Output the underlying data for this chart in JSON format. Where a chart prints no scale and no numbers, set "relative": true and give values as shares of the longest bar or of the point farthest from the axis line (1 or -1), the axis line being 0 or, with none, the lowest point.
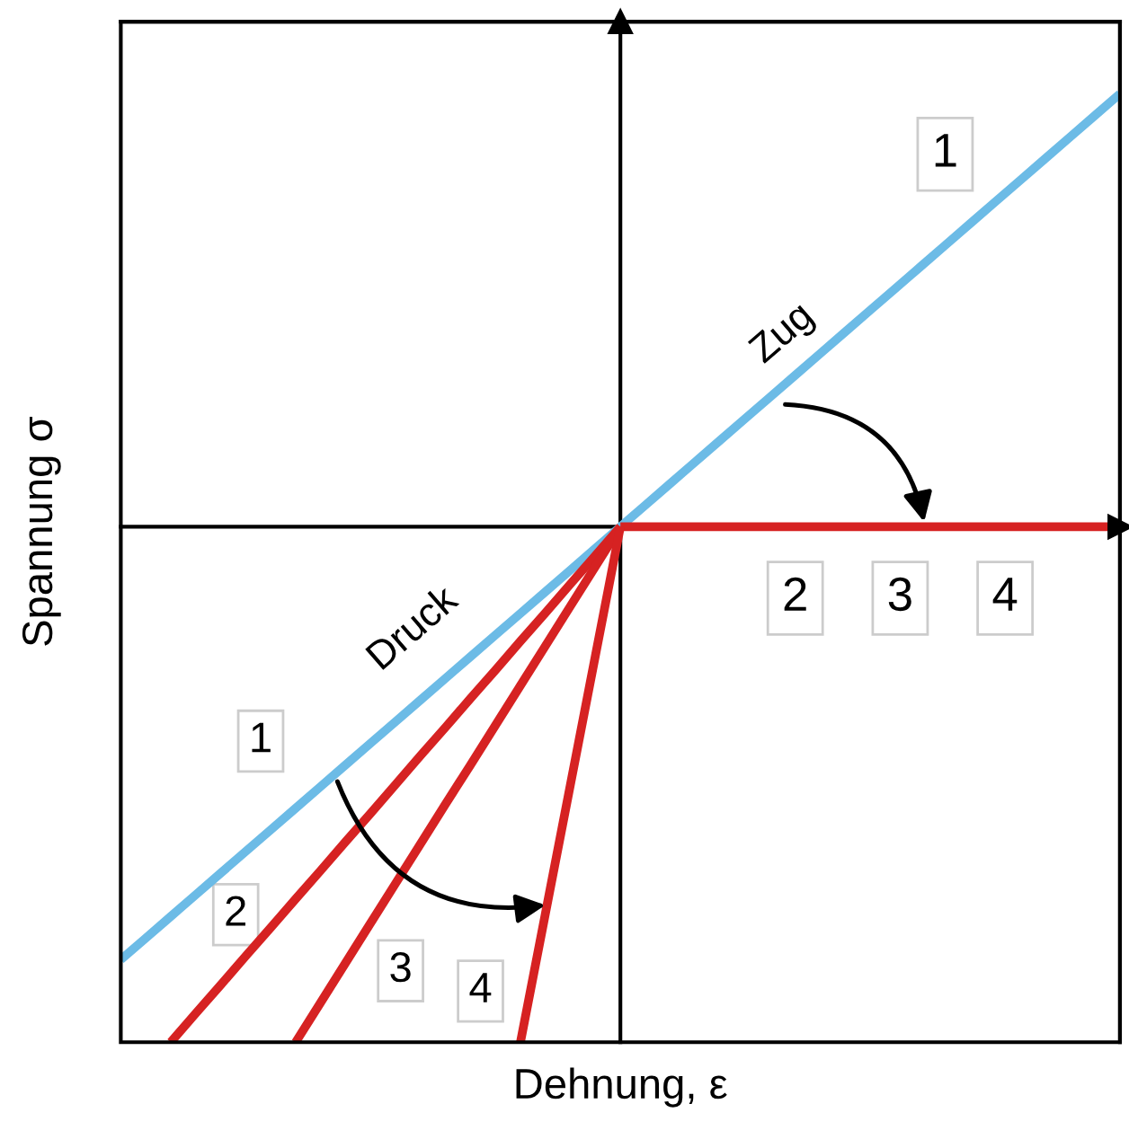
{
  "chart_data": {
    "type": "line",
    "relative": true,
    "xlabel": "Dehnung, ε",
    "ylabel": "Spannung σ",
    "line_style": "solid",
    "categories": [
      null,
      null,
      null,
      null,
      null,
      null,
      null,
      null,
      null,
      null,
      null,
      null,
      null,
      null,
      null,
      null,
      null,
      null,
      null,
      null,
      null,
      null,
      null,
      null,
      null,
      null,
      null,
      null,
      null,
      null,
      null,
      null,
      null,
      null,
      null,
      null,
      null,
      null,
      null,
      null,
      null
    ],
    "series": [
      {
        "name": "1",
        "color": "#6cbbe6",
        "values": [
          -0.84,
          -0.798,
          -0.756,
          -0.714,
          -0.672,
          -0.63,
          -0.588,
          -0.546,
          -0.504,
          -0.462,
          -0.42,
          -0.378,
          -0.336,
          -0.294,
          -0.252,
          -0.21,
          -0.168,
          -0.126,
          -0.084,
          -0.042,
          0,
          0.042,
          0.084,
          0.126,
          0.168,
          0.21,
          0.252,
          0.294,
          0.336,
          0.378,
          0.42,
          0.462,
          0.504,
          0.546,
          0.588,
          0.63,
          0.672,
          0.714,
          0.756,
          0.798,
          0.84
        ]
      },
      {
        "color": "#d62222",
        "values": [
          null,
          null,
          null,
          null,
          null,
          null,
          null,
          null,
          null,
          null,
          null,
          null,
          null,
          null,
          null,
          null,
          null,
          null,
          null,
          null,
          0,
          0,
          0,
          0,
          0,
          0,
          0,
          0,
          0,
          0,
          0,
          0,
          0,
          0,
          0,
          0,
          0,
          0,
          0,
          0,
          0
        ]
      },
      {
        "name": "2",
        "color": "#d62222",
        "values": [
          null,
          null,
          -1,
          -0.944,
          -0.889,
          -0.833,
          -0.778,
          -0.722,
          -0.667,
          -0.611,
          -0.556,
          -0.5,
          -0.444,
          -0.389,
          -0.333,
          -0.278,
          -0.222,
          -0.167,
          -0.111,
          -0.056,
          0,
          null,
          null,
          null,
          null,
          null,
          null,
          null,
          null,
          null,
          null,
          null,
          null,
          null,
          null,
          null,
          null,
          null,
          null,
          null,
          null
        ]
      },
      {
        "name": "3",
        "color": "#d62222",
        "values": [
          null,
          null,
          null,
          null,
          null,
          null,
          null,
          -1,
          -0.923,
          -0.846,
          -0.769,
          -0.692,
          -0.615,
          -0.538,
          -0.462,
          -0.385,
          -0.308,
          -0.231,
          -0.154,
          -0.077,
          0,
          null,
          null,
          null,
          null,
          null,
          null,
          null,
          null,
          null,
          null,
          null,
          null,
          null,
          null,
          null,
          null,
          null,
          null,
          null,
          null
        ]
      },
      {
        "name": "4",
        "color": "#d62222",
        "values": [
          null,
          null,
          null,
          null,
          null,
          null,
          null,
          null,
          null,
          null,
          null,
          null,
          null,
          null,
          null,
          null,
          -1,
          -0.75,
          -0.5,
          -0.25,
          0,
          null,
          null,
          null,
          null,
          null,
          null,
          null,
          null,
          null,
          null,
          null,
          null,
          null,
          null,
          null,
          null,
          null,
          null,
          null,
          null
        ]
      }
    ],
    "annotations": [
      "1",
      "Zug",
      "2",
      "3",
      "4",
      "Druck"
    ]
  }
}
